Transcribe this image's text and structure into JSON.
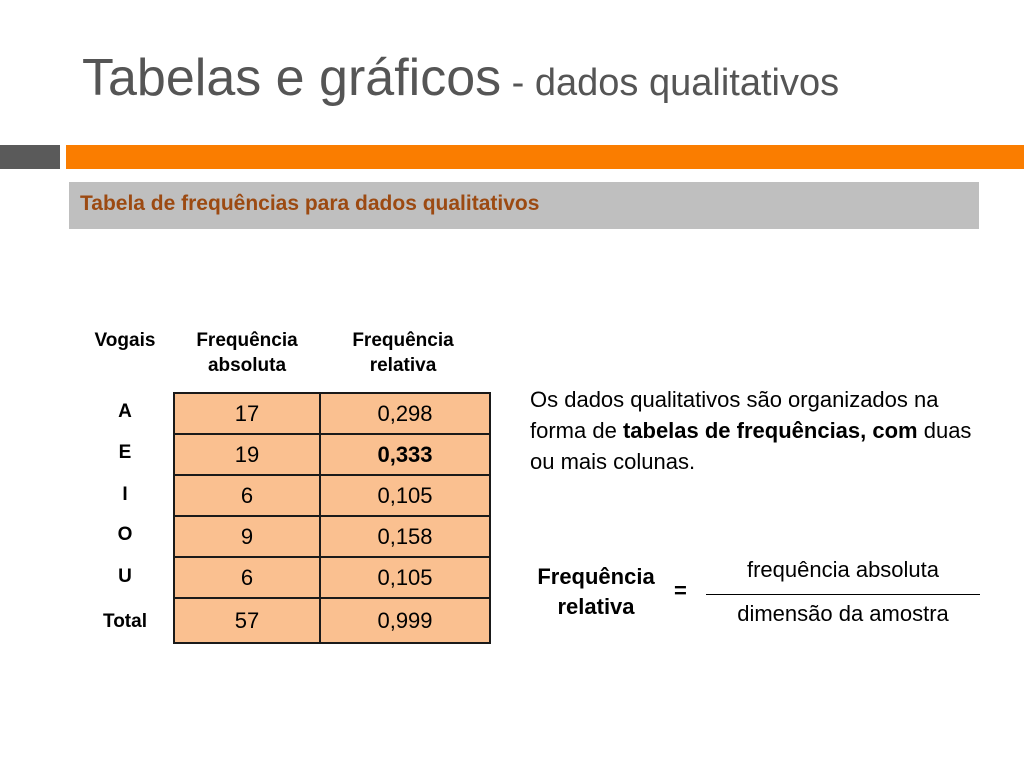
{
  "title": {
    "main": "Tabelas e gráficos",
    "sub": " - dados qualitativos"
  },
  "subheader": "Tabela de frequências para dados qualitativos",
  "table": {
    "headers": {
      "col0": "Vogais",
      "col1_line1": "Frequência",
      "col1_line2": "absoluta",
      "col2_line1": "Frequência",
      "col2_line2": "relativa"
    },
    "rows": [
      {
        "label": "A",
        "abs": "17",
        "rel": "0,298"
      },
      {
        "label": "E",
        "abs": "19",
        "rel": "0,333"
      },
      {
        "label": "I",
        "abs": "6",
        "rel": "0,105"
      },
      {
        "label": "O",
        "abs": "9",
        "rel": "0,158"
      },
      {
        "label": "U",
        "abs": "6",
        "rel": "0,105"
      }
    ],
    "total": {
      "label": "Total",
      "abs": "57",
      "rel": "0,999"
    }
  },
  "description": {
    "part1": "Os dados qualitativos são organizados na forma de ",
    "bold": "tabelas de frequências, com",
    "part2": " duas ou mais colunas."
  },
  "formula": {
    "label_line1": "Frequência",
    "label_line2": "relativa",
    "equals": "=",
    "numerator": "frequência absoluta",
    "denominator": "dimensão da amostra"
  }
}
